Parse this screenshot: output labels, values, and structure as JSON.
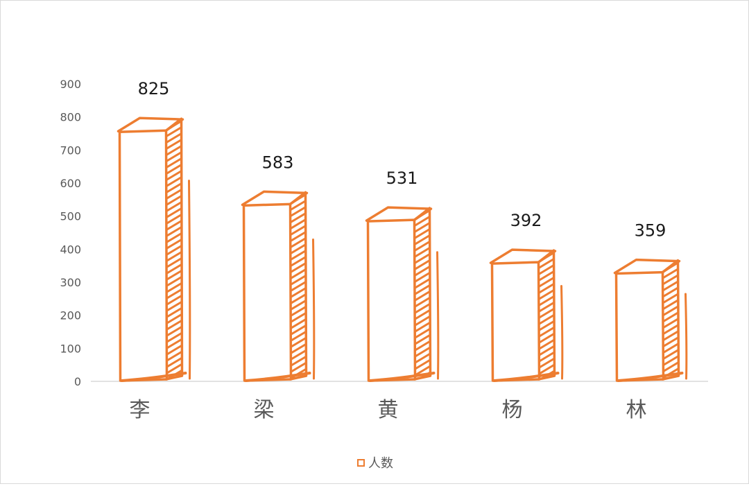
{
  "chart_data": {
    "type": "bar",
    "style": "sketch-3d",
    "categories": [
      "李",
      "梁",
      "黄",
      "杨",
      "林"
    ],
    "series": [
      {
        "name": "人数",
        "values": [
          825,
          583,
          531,
          392,
          359
        ]
      }
    ],
    "data_labels": [
      "825",
      "583",
      "531",
      "392",
      "359"
    ],
    "y_ticks": [
      "0",
      "100",
      "200",
      "300",
      "400",
      "500",
      "600",
      "700",
      "800",
      "900"
    ],
    "ylim": [
      0,
      900
    ],
    "grid": false,
    "legend": "bottom",
    "colors": {
      "bar": "#ED7D31",
      "axis": "#d9d9d9"
    }
  }
}
